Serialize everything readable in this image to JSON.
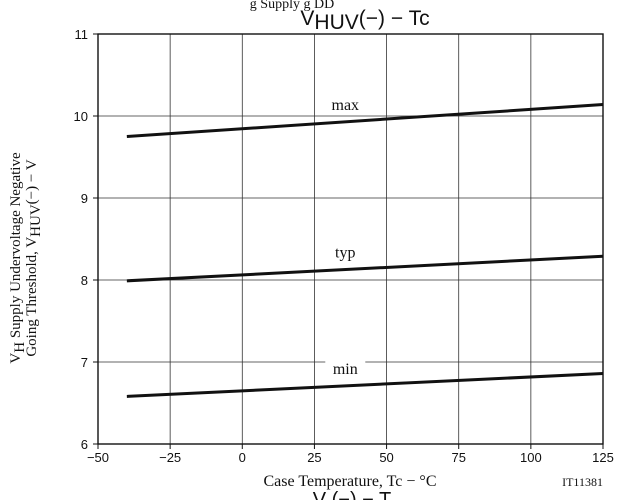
{
  "chart_data": {
    "type": "line",
    "title_top": "g    Supply      g    DD",
    "title": "VHUV(−)  −  Tc",
    "title_main": "V",
    "title_sub": "HUV",
    "title_suffix": "(−)  −  Tc",
    "ylabel_line1": "V",
    "ylabel_line1_sub": "H",
    "ylabel_line1_rest": " Supply Undervoltage Negative",
    "ylabel_line2": "Going Threshold, V",
    "ylabel_line2_sub": "HUV",
    "ylabel_line2_rest": "(−)  −  V",
    "xlabel": "Case Temperature, Tc  −  °C",
    "code": "IT11381",
    "bottom_cut": "V        (−)   −  T",
    "xlim": [
      -50,
      125
    ],
    "ylim": [
      6,
      11
    ],
    "x_ticks": [
      "−50",
      "−25",
      "0",
      "25",
      "50",
      "75",
      "100",
      "125"
    ],
    "x_tick_values": [
      -50,
      -25,
      0,
      25,
      50,
      75,
      100,
      125
    ],
    "y_ticks": [
      "6",
      "7",
      "8",
      "9",
      "10",
      "11"
    ],
    "y_tick_values": [
      6,
      7,
      8,
      9,
      10,
      11
    ],
    "grid": true,
    "series": [
      {
        "name": "max",
        "x": [
          -40,
          125
        ],
        "y": [
          9.75,
          10.14
        ]
      },
      {
        "name": "typ",
        "x": [
          -40,
          125
        ],
        "y": [
          7.99,
          8.29
        ]
      },
      {
        "name": "min",
        "x": [
          -40,
          125
        ],
        "y": [
          6.58,
          6.86
        ]
      }
    ]
  }
}
